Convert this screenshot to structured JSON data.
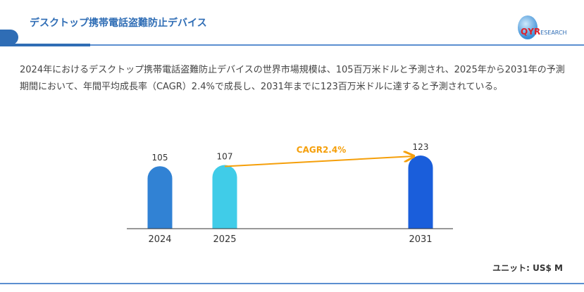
{
  "header": {
    "title": "デスクトップ携帯電話盗難防止デバイス",
    "logo_text": "QYRESEARCH"
  },
  "description": "2024年におけるデスクトップ携帯電話盗難防止デバイスの世界市場規模は、105百万米ドルと予測され、2025年から2031年の予測期間において、年間平均成長率（CAGR）2.4%で成長し、2031年までに123百万米ドルに達すると予測されている。",
  "unit_label": "ユニット: US$ M",
  "chart_data": {
    "type": "bar",
    "categories": [
      "2024",
      "2025",
      "2031"
    ],
    "values": [
      105,
      107,
      123
    ],
    "colors": [
      "#3182d4",
      "#40cce8",
      "#1a5edb"
    ],
    "ylim": [
      0,
      145
    ],
    "annotation": {
      "text": "CAGR2.4%",
      "from": "2025",
      "to": "2031",
      "color": "#f59f0a"
    },
    "grid": false
  }
}
